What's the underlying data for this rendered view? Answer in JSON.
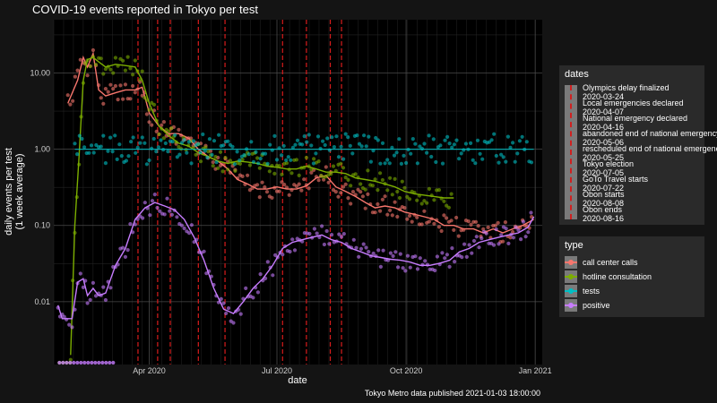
{
  "chart_data": {
    "type": "line",
    "title": "COVID-19 events reported in Tokyo per test",
    "xlabel": "date",
    "ylabel_lines": [
      "daily events per test",
      "(1 week average)"
    ],
    "y_scale": "log",
    "ylim": [
      0.0015,
      50
    ],
    "y_ticks": [
      {
        "value": 0.01,
        "label": "0.01"
      },
      {
        "value": 0.1,
        "label": "0.10"
      },
      {
        "value": 1,
        "label": "1.00"
      },
      {
        "value": 10,
        "label": "10.00"
      }
    ],
    "xlim": [
      "2020-01-24",
      "2021-01-06"
    ],
    "x_ticks": [
      {
        "date": "2020-04-01",
        "label": "Apr 2020"
      },
      {
        "date": "2020-07-01",
        "label": "Jul 2020"
      },
      {
        "date": "2020-10-01",
        "label": "Oct 2020"
      },
      {
        "date": "2021-01-01",
        "label": "Jan 2021"
      }
    ],
    "caption": "Tokyo Metro data published 2021-01-03 18:00:00",
    "grid": true,
    "events": [
      {
        "name": "Olympics delay finalized",
        "date": "2020-03-24"
      },
      {
        "name": "Local emergencies declared",
        "date": "2020-04-07"
      },
      {
        "name": "National emergency declared",
        "date": "2020-04-16"
      },
      {
        "name": "abandoned end of national emergency",
        "date": "2020-05-06"
      },
      {
        "name": "rescheduled end of national emergency",
        "date": "2020-05-25"
      },
      {
        "name": "Tokyo election",
        "date": "2020-07-05"
      },
      {
        "name": "GoTo Travel starts",
        "date": "2020-07-22"
      },
      {
        "name": "Obon starts",
        "date": "2020-08-08"
      },
      {
        "name": "Obon ends",
        "date": "2020-08-16"
      }
    ],
    "legend_dates_title": "dates",
    "legend_type_title": "type",
    "series": [
      {
        "name": "call center calls",
        "color": "#f8766d",
        "x": [
          "2020-02-03",
          "2020-02-10",
          "2020-02-14",
          "2020-02-17",
          "2020-02-21",
          "2020-02-25",
          "2020-03-01",
          "2020-03-08",
          "2020-03-15",
          "2020-03-22",
          "2020-03-27",
          "2020-04-01",
          "2020-04-08",
          "2020-04-15",
          "2020-04-22",
          "2020-04-29",
          "2020-05-06",
          "2020-05-13",
          "2020-05-20",
          "2020-05-27",
          "2020-06-03",
          "2020-06-10",
          "2020-06-17",
          "2020-06-24",
          "2020-07-01",
          "2020-07-08",
          "2020-07-15",
          "2020-07-22",
          "2020-07-29",
          "2020-08-05",
          "2020-08-12",
          "2020-08-19",
          "2020-08-26",
          "2020-09-02",
          "2020-09-09",
          "2020-09-16",
          "2020-09-23",
          "2020-09-30",
          "2020-10-07",
          "2020-10-14",
          "2020-10-21",
          "2020-10-28",
          "2020-11-04",
          "2020-11-11",
          "2020-11-18",
          "2020-11-25",
          "2020-12-02",
          "2020-12-09",
          "2020-12-16",
          "2020-12-23",
          "2020-12-31"
        ],
        "y": [
          4,
          8,
          16,
          12,
          18,
          6,
          5,
          5.5,
          6,
          6,
          6.5,
          3,
          2,
          1.6,
          1.6,
          1.4,
          1,
          0.8,
          0.7,
          0.55,
          0.4,
          0.35,
          0.3,
          0.3,
          0.32,
          0.3,
          0.3,
          0.33,
          0.42,
          0.45,
          0.32,
          0.28,
          0.24,
          0.2,
          0.17,
          0.18,
          0.17,
          0.15,
          0.14,
          0.13,
          0.12,
          0.1,
          0.1,
          0.09,
          0.09,
          0.08,
          0.09,
          0.08,
          0.09,
          0.1,
          0.12
        ]
      },
      {
        "name": "hotline consultation",
        "color": "#7cae00",
        "x": [
          "2020-02-05",
          "2020-02-08",
          "2020-02-11",
          "2020-02-14",
          "2020-02-17",
          "2020-02-21",
          "2020-02-25",
          "2020-03-01",
          "2020-03-08",
          "2020-03-15",
          "2020-03-22",
          "2020-03-27",
          "2020-04-01",
          "2020-04-08",
          "2020-04-15",
          "2020-04-22",
          "2020-04-29",
          "2020-05-06",
          "2020-05-13",
          "2020-05-20",
          "2020-05-27",
          "2020-06-03",
          "2020-06-10",
          "2020-06-17",
          "2020-06-24",
          "2020-07-01",
          "2020-07-08",
          "2020-07-15",
          "2020-07-22",
          "2020-07-29",
          "2020-08-05",
          "2020-08-12",
          "2020-08-19",
          "2020-08-26",
          "2020-09-02",
          "2020-09-09",
          "2020-09-16",
          "2020-09-23",
          "2020-09-30",
          "2020-10-07",
          "2020-10-14",
          "2020-10-21",
          "2020-10-28",
          "2020-11-04"
        ],
        "y": [
          0.002,
          0.1,
          0.8,
          8,
          15,
          16,
          14,
          12,
          13,
          12.5,
          12,
          8,
          4,
          2,
          1.5,
          1.2,
          1.1,
          0.9,
          0.8,
          0.7,
          0.65,
          0.7,
          0.68,
          0.65,
          0.6,
          0.58,
          0.55,
          0.55,
          0.6,
          0.55,
          0.5,
          0.5,
          0.48,
          0.42,
          0.4,
          0.38,
          0.35,
          0.32,
          0.28,
          0.26,
          0.25,
          0.24,
          0.23,
          0.23
        ]
      },
      {
        "name": "tests",
        "color": "#00bfc4",
        "x": [
          "2020-02-08",
          "2020-03-01",
          "2020-04-01",
          "2020-05-01",
          "2020-06-01",
          "2020-07-01",
          "2020-08-01",
          "2020-09-01",
          "2020-10-01",
          "2020-11-01",
          "2020-12-01",
          "2020-12-31"
        ],
        "y": [
          1,
          1,
          1,
          1,
          1,
          1,
          1,
          1,
          1,
          1,
          1,
          1
        ]
      },
      {
        "name": "positive",
        "color": "#c77cff",
        "x": [
          "2020-01-27",
          "2020-01-30",
          "2020-02-02",
          "2020-02-06",
          "2020-02-10",
          "2020-02-14",
          "2020-02-17",
          "2020-02-21",
          "2020-02-25",
          "2020-03-01",
          "2020-03-08",
          "2020-03-15",
          "2020-03-22",
          "2020-03-29",
          "2020-04-05",
          "2020-04-12",
          "2020-04-19",
          "2020-04-26",
          "2020-05-03",
          "2020-05-10",
          "2020-05-17",
          "2020-05-24",
          "2020-05-31",
          "2020-06-07",
          "2020-06-14",
          "2020-06-21",
          "2020-06-28",
          "2020-07-05",
          "2020-07-12",
          "2020-07-19",
          "2020-07-26",
          "2020-08-02",
          "2020-08-09",
          "2020-08-16",
          "2020-08-23",
          "2020-08-30",
          "2020-09-06",
          "2020-09-13",
          "2020-09-20",
          "2020-09-27",
          "2020-10-04",
          "2020-10-11",
          "2020-10-18",
          "2020-10-25",
          "2020-11-01",
          "2020-11-08",
          "2020-11-15",
          "2020-11-22",
          "2020-11-29",
          "2020-12-06",
          "2020-12-13",
          "2020-12-20",
          "2020-12-27",
          "2020-12-31"
        ],
        "y": [
          0.009,
          0.006,
          0.006,
          0.006,
          0.018,
          0.02,
          0.012,
          0.015,
          0.012,
          0.013,
          0.03,
          0.05,
          0.12,
          0.17,
          0.2,
          0.18,
          0.16,
          0.12,
          0.07,
          0.035,
          0.015,
          0.008,
          0.007,
          0.01,
          0.015,
          0.02,
          0.03,
          0.05,
          0.06,
          0.065,
          0.07,
          0.075,
          0.065,
          0.06,
          0.05,
          0.045,
          0.04,
          0.038,
          0.036,
          0.035,
          0.033,
          0.03,
          0.03,
          0.032,
          0.035,
          0.045,
          0.05,
          0.06,
          0.065,
          0.07,
          0.075,
          0.08,
          0.095,
          0.13
        ]
      }
    ]
  }
}
